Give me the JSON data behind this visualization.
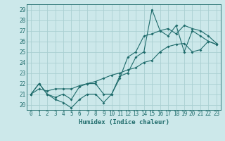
{
  "xlabel": "Humidex (Indice chaleur)",
  "bg_color": "#cce8ea",
  "grid_color": "#aacfd2",
  "line_color": "#1e6b6b",
  "xlim": [
    -0.5,
    23.5
  ],
  "ylim": [
    19.5,
    29.5
  ],
  "xticks": [
    0,
    1,
    2,
    3,
    4,
    5,
    6,
    7,
    8,
    9,
    10,
    11,
    12,
    13,
    14,
    15,
    16,
    17,
    18,
    19,
    20,
    21,
    22,
    23
  ],
  "yticks": [
    20,
    21,
    22,
    23,
    24,
    25,
    26,
    27,
    28,
    29
  ],
  "series1_x": [
    0,
    1,
    2,
    3,
    4,
    5,
    6,
    7,
    8,
    9,
    10,
    11,
    12,
    13,
    14,
    15,
    16,
    17,
    18,
    19,
    20,
    21,
    22,
    23
  ],
  "series1_y": [
    21.0,
    22.0,
    21.0,
    20.5,
    20.2,
    19.7,
    20.5,
    21.0,
    21.0,
    20.2,
    21.0,
    22.5,
    24.5,
    25.0,
    26.5,
    26.7,
    27.0,
    26.5,
    27.5,
    25.0,
    27.0,
    26.5,
    26.0,
    25.7
  ],
  "series2_x": [
    0,
    1,
    2,
    3,
    4,
    5,
    6,
    7,
    8,
    9,
    10,
    11,
    12,
    13,
    14,
    15,
    16,
    17,
    18,
    19,
    20,
    21,
    22,
    23
  ],
  "series2_y": [
    21.0,
    22.0,
    21.0,
    20.7,
    21.0,
    20.5,
    21.7,
    22.0,
    22.0,
    21.0,
    21.0,
    22.7,
    23.0,
    24.5,
    25.0,
    29.0,
    27.0,
    27.2,
    26.7,
    27.5,
    27.2,
    27.0,
    26.5,
    25.8
  ],
  "series3_x": [
    0,
    1,
    2,
    3,
    4,
    5,
    6,
    7,
    8,
    9,
    10,
    11,
    12,
    13,
    14,
    15,
    16,
    17,
    18,
    19,
    20,
    21,
    22,
    23
  ],
  "series3_y": [
    21.0,
    21.5,
    21.3,
    21.5,
    21.5,
    21.5,
    21.8,
    22.0,
    22.2,
    22.5,
    22.8,
    23.0,
    23.3,
    23.5,
    24.0,
    24.2,
    25.0,
    25.5,
    25.7,
    25.8,
    25.0,
    25.2,
    26.0,
    25.7
  ]
}
